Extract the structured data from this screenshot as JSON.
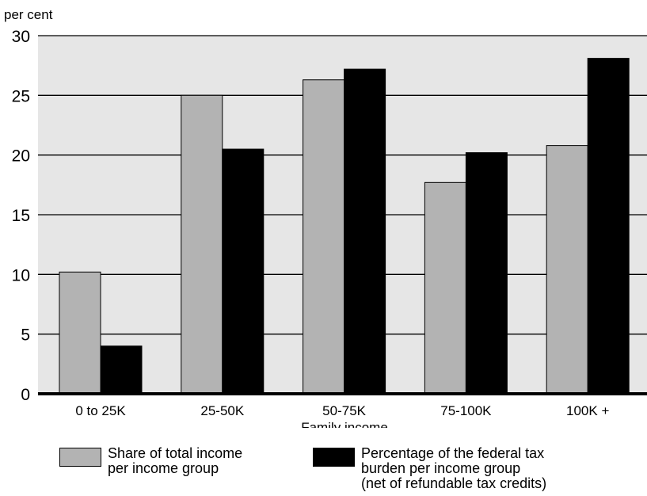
{
  "chart_data": {
    "type": "bar",
    "ylabel": "per cent",
    "xlabel": "Family income",
    "categories": [
      "0 to 25K",
      "25-50K",
      "50-75K",
      "75-100K",
      "100K +"
    ],
    "series": [
      {
        "name": "Share of total income\nper income group",
        "color": "#b3b3b3",
        "values": [
          10.2,
          25.0,
          26.3,
          17.7,
          20.8
        ]
      },
      {
        "name": "Percentage of the federal tax\nburden per income group\n(net of refundable tax credits)",
        "color": "#000000",
        "values": [
          4.0,
          20.5,
          27.2,
          20.2,
          28.1
        ]
      }
    ],
    "ylim": [
      0,
      30
    ],
    "yticks": [
      0,
      5,
      10,
      15,
      20,
      25,
      30
    ],
    "grid": true,
    "plot_background": "#e6e6e6",
    "legend_position": "bottom"
  }
}
